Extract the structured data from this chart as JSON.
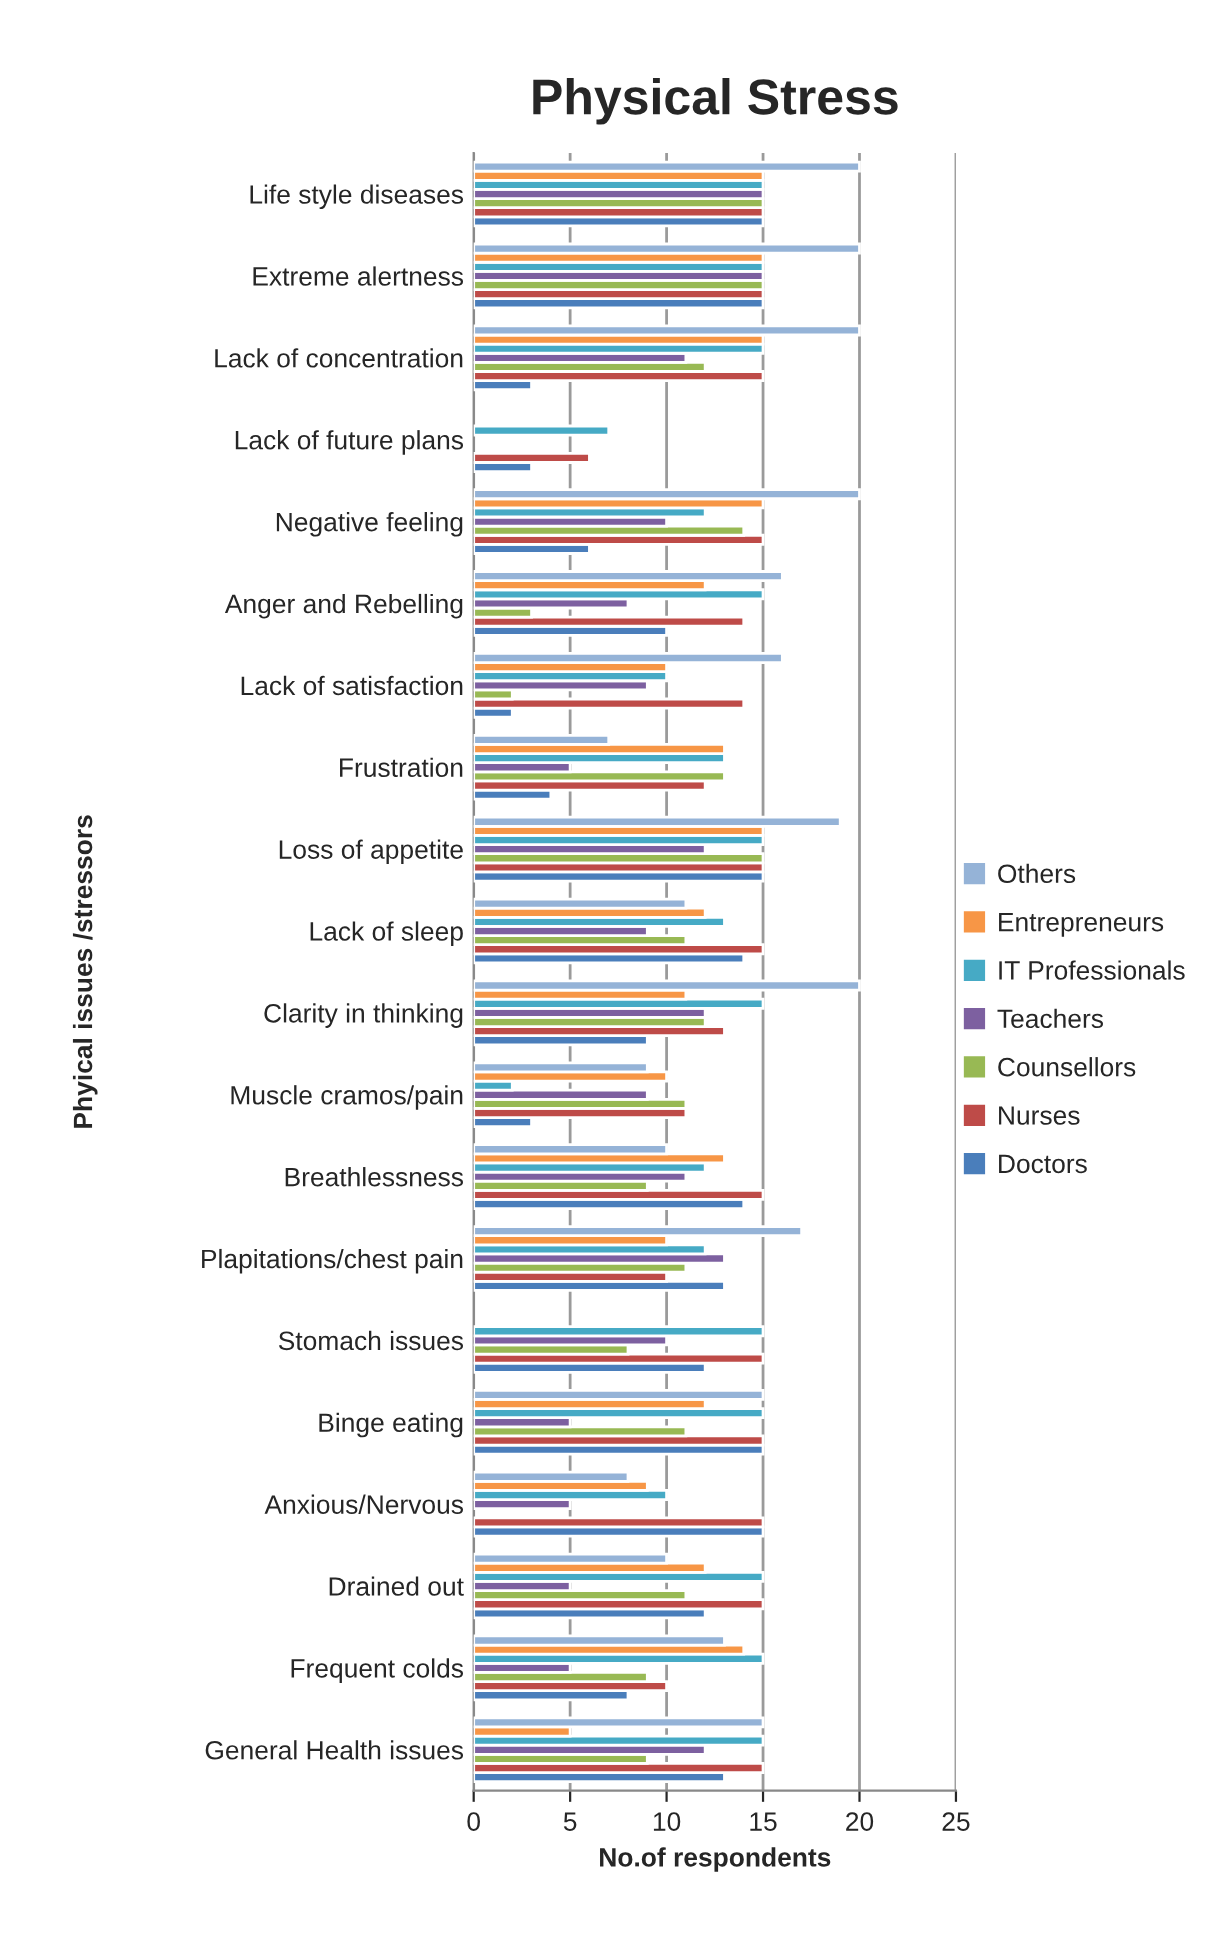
{
  "chart_data": {
    "type": "bar",
    "orientation": "horizontal",
    "title": "Physical Stress",
    "xlabel": "No.of respondents",
    "ylabel": "Phyical issues /stressors",
    "categories": [
      "Life style diseases",
      "Extreme alertness",
      "Lack of concentration",
      "Lack of future plans",
      "Negative feeling",
      "Anger and Rebelling",
      "Lack of satisfaction",
      "Frustration",
      "Loss of appetite",
      "Lack of sleep",
      "Clarity in thinking",
      "Muscle cramos/pain",
      "Breathlessness",
      "Plapitations/chest pain",
      "Stomach issues",
      "Binge eating",
      "Anxious/Nervous",
      "Drained out",
      "Frequent colds",
      "General Health issues"
    ],
    "series": [
      {
        "name": "Doctors",
        "color": "#4a7ebb",
        "values": [
          15,
          15,
          3,
          3,
          6,
          10,
          2,
          4,
          15,
          14,
          9,
          3,
          14,
          13,
          12,
          15,
          15,
          12,
          8,
          13
        ]
      },
      {
        "name": "Nurses",
        "color": "#be4b48",
        "values": [
          15,
          15,
          15,
          6,
          15,
          14,
          14,
          12,
          15,
          15,
          13,
          11,
          15,
          10,
          15,
          15,
          15,
          15,
          10,
          15
        ]
      },
      {
        "name": "Counsellors",
        "color": "#98b954",
        "values": [
          15,
          15,
          12,
          null,
          14,
          3,
          2,
          13,
          15,
          11,
          12,
          11,
          9,
          11,
          8,
          11,
          null,
          11,
          9,
          9
        ]
      },
      {
        "name": "Teachers",
        "color": "#7d60a0",
        "values": [
          15,
          15,
          11,
          null,
          10,
          8,
          9,
          5,
          12,
          9,
          12,
          9,
          11,
          13,
          10,
          5,
          5,
          5,
          5,
          12
        ]
      },
      {
        "name": "IT Professionals",
        "color": "#46aac5",
        "values": [
          15,
          15,
          15,
          7,
          12,
          15,
          10,
          13,
          15,
          13,
          15,
          2,
          12,
          12,
          15,
          15,
          10,
          15,
          15,
          15
        ]
      },
      {
        "name": "Entrepreneurs",
        "color": "#f79646",
        "values": [
          15,
          15,
          15,
          null,
          15,
          12,
          10,
          13,
          15,
          12,
          11,
          10,
          13,
          10,
          null,
          12,
          9,
          12,
          14,
          5
        ]
      },
      {
        "name": "Others",
        "color": "#95b3d7",
        "values": [
          20,
          20,
          20,
          null,
          20,
          16,
          16,
          7,
          19,
          11,
          20,
          9,
          10,
          17,
          null,
          15,
          8,
          10,
          13,
          15
        ]
      }
    ],
    "xlim": [
      0,
      25
    ],
    "xticks": [
      0,
      5,
      10,
      15,
      20,
      25
    ],
    "grid": "x",
    "legend": "right"
  }
}
